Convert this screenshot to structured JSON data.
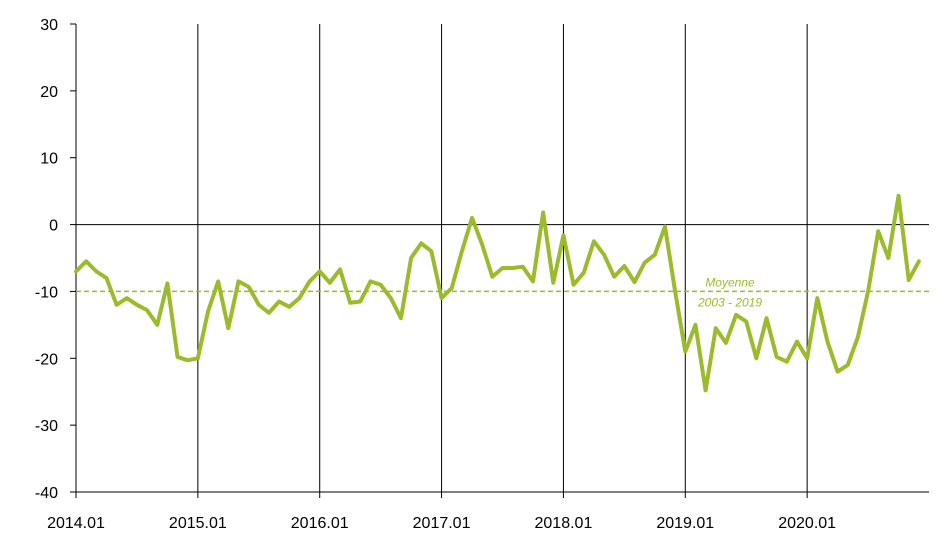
{
  "chart_data": {
    "type": "line",
    "title": "",
    "xlabel": "",
    "ylabel": "",
    "ylim": [
      -40,
      30
    ],
    "yticks": [
      30,
      20,
      10,
      0,
      -10,
      -20,
      -30,
      -40
    ],
    "xtick_labels": [
      "2014.01",
      "2015.01",
      "2016.01",
      "2017.01",
      "2018.01",
      "2019.01",
      "2020.01"
    ],
    "x_start": "2014.01",
    "x_end": "2020.11",
    "grid": "vertical at each January",
    "colors": {
      "series": "#9bbb2c",
      "axis": "#000000"
    },
    "series": [
      {
        "values": [
          -7,
          -5.5,
          -7,
          -8,
          -12,
          -11,
          -12,
          -12.8,
          -15,
          -8.8,
          -19.8,
          -20.3,
          -20,
          -13,
          -8.5,
          -15.5,
          -8.5,
          -9.3,
          -12,
          -13.2,
          -11.5,
          -12.3,
          -11,
          -8.5,
          -7,
          -8.7,
          -6.7,
          -11.7,
          -11.5,
          -8.5,
          -9,
          -11,
          -14,
          -5,
          -2.8,
          -4,
          -11,
          -9.5,
          -4,
          1,
          -3,
          -7.8,
          -6.5,
          -6.5,
          -6.3,
          -8.5,
          1.8,
          -8.7,
          -1.6,
          -9,
          -7.2,
          -2.5,
          -4.5,
          -7.8,
          -6.2,
          -8.6,
          -5.7,
          -4.5,
          -0.3,
          -10,
          -19,
          -15,
          -24.8,
          -15.5,
          -17.7,
          -13.5,
          -14.5,
          -20,
          -14,
          -19.8,
          -20.5,
          -17.5,
          -20,
          -11,
          -17.5,
          -22,
          -21,
          -16.8,
          -10,
          -1,
          -5,
          4.3,
          -8.3,
          -5.5
        ]
      },
      {
        "name": "Moyenne 2003 - 2019",
        "type": "reference-line",
        "value": -10
      }
    ],
    "annotation": {
      "line1": "Moyenne",
      "line2": "2003 - 2019"
    }
  }
}
